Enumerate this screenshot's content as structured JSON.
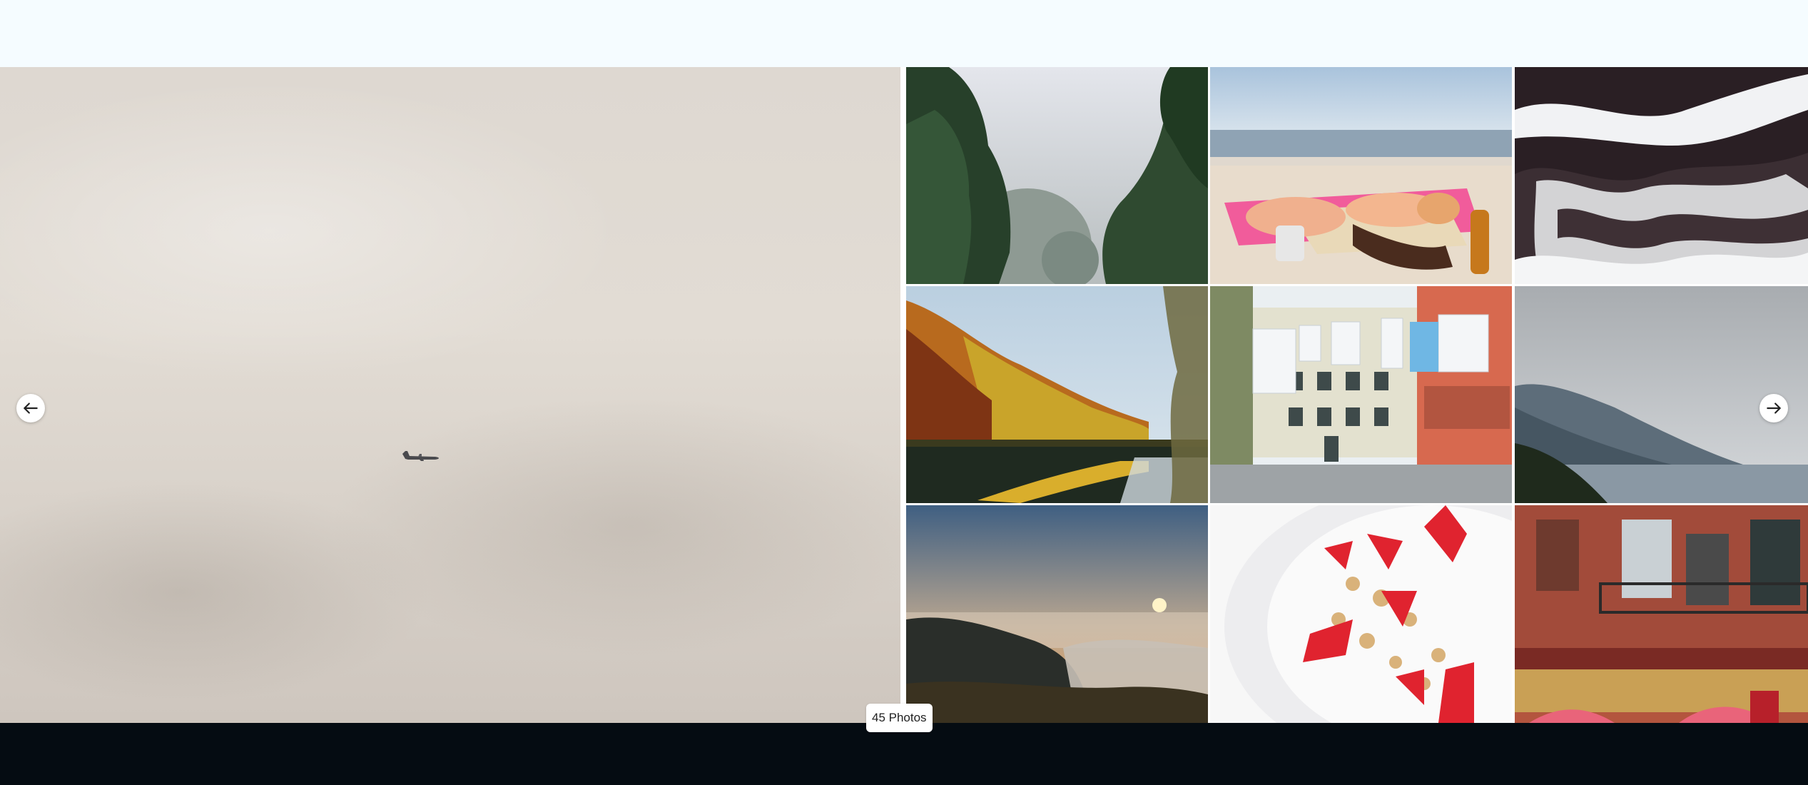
{
  "gallery": {
    "photo_count_label": "45 Photos",
    "prev_icon": "arrow-left-icon",
    "next_icon": "arrow-right-icon",
    "hero_subject": "airplane-in-overcast-sky",
    "thumbnails": [
      "misty-trees",
      "beach-sunbathers",
      "ocean-waves",
      "autumn-lake-reflection",
      "laundry-street",
      "mountain-coast",
      "mountain-sunrise",
      "strawberry-cereal",
      "brick-building-cafe"
    ]
  },
  "colors": {
    "page_background": "#F5FCFF",
    "footer_bar": "#050C12",
    "button_background": "#FFFFFF"
  }
}
